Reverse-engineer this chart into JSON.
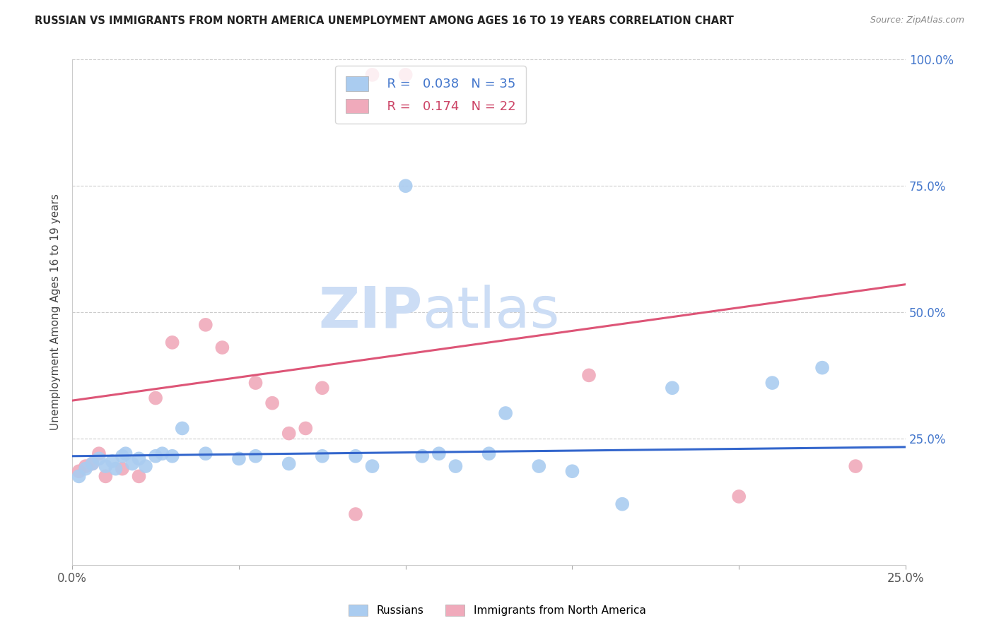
{
  "title": "RUSSIAN VS IMMIGRANTS FROM NORTH AMERICA UNEMPLOYMENT AMONG AGES 16 TO 19 YEARS CORRELATION CHART",
  "source": "Source: ZipAtlas.com",
  "ylabel": "Unemployment Among Ages 16 to 19 years",
  "xlim": [
    0.0,
    0.25
  ],
  "ylim": [
    0.0,
    1.0
  ],
  "yticks": [
    0.0,
    0.25,
    0.5,
    0.75,
    1.0
  ],
  "xticks": [
    0.0,
    0.05,
    0.1,
    0.15,
    0.2,
    0.25
  ],
  "blue_R": 0.038,
  "blue_N": 35,
  "pink_R": 0.174,
  "pink_N": 22,
  "blue_color": "#aaccf0",
  "pink_color": "#f0aabb",
  "blue_line_color": "#3366cc",
  "pink_line_color": "#dd5577",
  "right_axis_color": "#4477cc",
  "watermark_color": "#ccddf5",
  "blue_scatter_x": [
    0.002,
    0.004,
    0.006,
    0.008,
    0.01,
    0.012,
    0.013,
    0.015,
    0.016,
    0.018,
    0.02,
    0.022,
    0.025,
    0.027,
    0.03,
    0.033,
    0.04,
    0.05,
    0.055,
    0.065,
    0.075,
    0.085,
    0.09,
    0.1,
    0.105,
    0.11,
    0.115,
    0.125,
    0.13,
    0.14,
    0.15,
    0.165,
    0.18,
    0.21,
    0.225
  ],
  "blue_scatter_y": [
    0.175,
    0.19,
    0.2,
    0.21,
    0.195,
    0.205,
    0.19,
    0.215,
    0.22,
    0.2,
    0.21,
    0.195,
    0.215,
    0.22,
    0.215,
    0.27,
    0.22,
    0.21,
    0.215,
    0.2,
    0.215,
    0.215,
    0.195,
    0.75,
    0.215,
    0.22,
    0.195,
    0.22,
    0.3,
    0.195,
    0.185,
    0.12,
    0.35,
    0.36,
    0.39
  ],
  "pink_scatter_x": [
    0.002,
    0.004,
    0.006,
    0.008,
    0.01,
    0.015,
    0.02,
    0.025,
    0.03,
    0.04,
    0.045,
    0.055,
    0.06,
    0.065,
    0.07,
    0.075,
    0.085,
    0.09,
    0.1,
    0.155,
    0.2,
    0.235
  ],
  "pink_scatter_y": [
    0.185,
    0.195,
    0.2,
    0.22,
    0.175,
    0.19,
    0.175,
    0.33,
    0.44,
    0.475,
    0.43,
    0.36,
    0.32,
    0.26,
    0.27,
    0.35,
    0.1,
    0.97,
    0.97,
    0.375,
    0.135,
    0.195
  ],
  "blue_trend_x": [
    0.0,
    0.25
  ],
  "blue_trend_y": [
    0.215,
    0.233
  ],
  "pink_trend_x": [
    0.0,
    0.25
  ],
  "pink_trend_y": [
    0.325,
    0.555
  ]
}
